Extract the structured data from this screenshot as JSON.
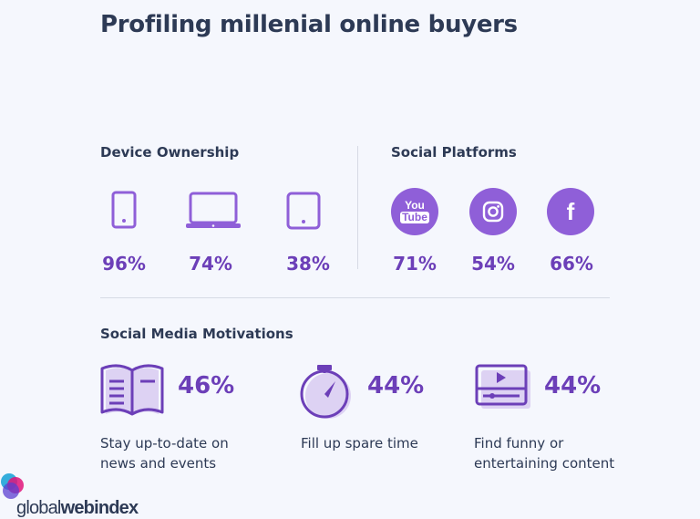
{
  "title": "Profiling millenial online buyers",
  "device_ownership": {
    "heading": "Device Ownership",
    "items": [
      {
        "icon": "smartphone-icon",
        "value": "96%"
      },
      {
        "icon": "laptop-icon",
        "value": "74%"
      },
      {
        "icon": "tablet-icon",
        "value": "38%"
      }
    ]
  },
  "social_platforms": {
    "heading": "Social Platforms",
    "items": [
      {
        "icon": "youtube-icon",
        "icon_text_top": "You",
        "icon_text_bottom": "Tube",
        "value": "71%"
      },
      {
        "icon": "instagram-icon",
        "value": "54%"
      },
      {
        "icon": "facebook-icon",
        "icon_text": "f",
        "value": "66%"
      }
    ]
  },
  "motivations": {
    "heading": "Social Media Motivations",
    "items": [
      {
        "icon": "open-book-icon",
        "value": "46%",
        "caption_line1": "Stay up-to-date on",
        "caption_line2": "news and events"
      },
      {
        "icon": "stopwatch-icon",
        "value": "44%",
        "caption_line1": "Fill up spare time",
        "caption_line2": ""
      },
      {
        "icon": "video-player-icon",
        "value": "44%",
        "caption_line1": "Find funny or",
        "caption_line2": "entertaining content"
      }
    ]
  },
  "brand": {
    "prefix": "global",
    "suffix": "webindex"
  },
  "colors": {
    "accent": "#6c3fb8",
    "icon_fill": "#8f5fd8",
    "text": "#2d3a55",
    "background": "#f5f7fd"
  }
}
